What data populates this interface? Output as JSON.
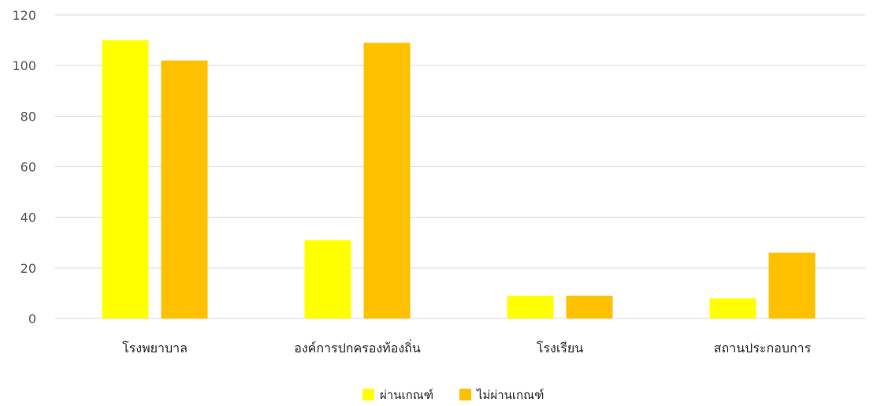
{
  "chart_data": {
    "type": "bar",
    "categories": [
      "โรงพยาบาล",
      "องค์การปกครองท้องถิ่น",
      "โรงเรียน",
      "สถานประกอบการ"
    ],
    "series": [
      {
        "name": "ผ่านเกณฑ์",
        "values": [
          110,
          31,
          9,
          8
        ],
        "color": "#FFFF00"
      },
      {
        "name": "ไม่ผ่านเกณฑ์",
        "values": [
          102,
          109,
          9,
          26
        ],
        "color": "#FFC000"
      }
    ],
    "title": "",
    "xlabel": "",
    "ylabel": "",
    "ylim": [
      0,
      120
    ],
    "yticks": [
      0,
      20,
      40,
      60,
      80,
      100,
      120
    ],
    "grid": true,
    "legend_position": "bottom"
  }
}
